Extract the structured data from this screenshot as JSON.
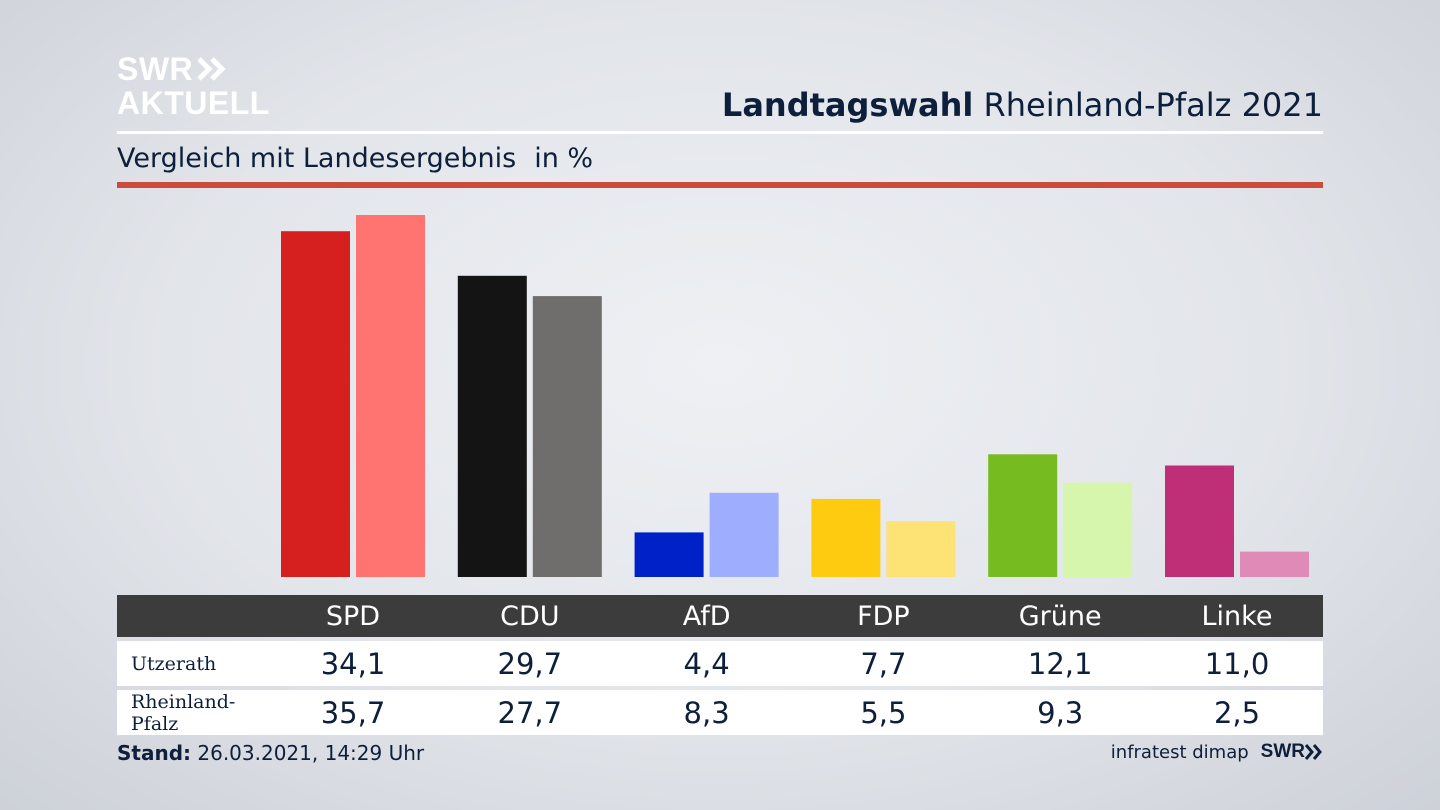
{
  "logo": {
    "line1": "SWR",
    "line2": "AKTUELL"
  },
  "headline": {
    "bold": "Landtagswahl",
    "rest": " Rheinland-Pfalz 2021"
  },
  "subtitle": {
    "text": "Vergleich mit Landesergebnis",
    "unit": "in %"
  },
  "footer": {
    "stand_label": "Stand:",
    "stand_value": " 26.03.2021, 14:29 Uhr",
    "source": "infratest dimap",
    "brand": "SWR"
  },
  "chart_data": {
    "type": "bar",
    "categories": [
      "SPD",
      "CDU",
      "AfD",
      "FDP",
      "Grüne",
      "Linke"
    ],
    "series": [
      {
        "name": "Utzerath",
        "values": [
          34.1,
          29.7,
          4.4,
          7.7,
          12.1,
          11.0
        ],
        "labels": [
          "34,1",
          "29,7",
          "4,4",
          "7,7",
          "12,1",
          "11,0"
        ],
        "colors": [
          "#d62020",
          "#141414",
          "#0021c7",
          "#fecb10",
          "#76bb1f",
          "#be2f77"
        ]
      },
      {
        "name": "Rheinland-Pfalz",
        "values": [
          35.7,
          27.7,
          8.3,
          5.5,
          9.3,
          2.5
        ],
        "labels": [
          "35,7",
          "27,7",
          "8,3",
          "5,5",
          "9,3",
          "2,5"
        ],
        "colors": [
          "#ff7470",
          "#6f6e6c",
          "#9eadfd",
          "#fde276",
          "#d6f6ae",
          "#e08ab8"
        ]
      }
    ],
    "ylim": [
      0,
      35.7
    ]
  }
}
